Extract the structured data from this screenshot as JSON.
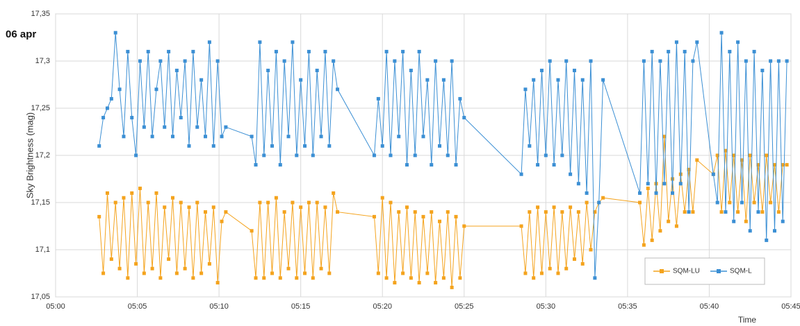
{
  "chart_data": {
    "type": "line",
    "annotation": "06 apr",
    "ylabel": "Sky Brightness (mag)",
    "xlabel": "Time",
    "x": [
      "05:02:40",
      "05:02:55",
      "05:03:10",
      "05:03:25",
      "05:03:40",
      "05:03:55",
      "05:04:10",
      "05:04:25",
      "05:04:40",
      "05:04:55",
      "05:05:10",
      "05:05:25",
      "05:05:40",
      "05:05:55",
      "05:06:10",
      "05:06:25",
      "05:06:40",
      "05:06:55",
      "05:07:10",
      "05:07:25",
      "05:07:40",
      "05:07:55",
      "05:08:10",
      "05:08:25",
      "05:08:40",
      "05:08:55",
      "05:09:10",
      "05:09:25",
      "05:09:40",
      "05:09:55",
      "05:10:10",
      "05:10:25",
      "05:12:00",
      "05:12:15",
      "05:12:30",
      "05:12:45",
      "05:13:00",
      "05:13:15",
      "05:13:30",
      "05:13:45",
      "05:14:00",
      "05:14:15",
      "05:14:30",
      "05:14:45",
      "05:15:00",
      "05:15:15",
      "05:15:30",
      "05:15:45",
      "05:16:00",
      "05:16:15",
      "05:16:30",
      "05:16:45",
      "05:17:00",
      "05:17:15",
      "05:19:30",
      "05:19:45",
      "05:20:00",
      "05:20:15",
      "05:20:30",
      "05:20:45",
      "05:21:00",
      "05:21:15",
      "05:21:30",
      "05:21:45",
      "05:22:00",
      "05:22:15",
      "05:22:30",
      "05:22:45",
      "05:23:00",
      "05:23:15",
      "05:23:30",
      "05:23:45",
      "05:24:00",
      "05:24:15",
      "05:24:30",
      "05:24:45",
      "05:25:00",
      "05:28:30",
      "05:28:45",
      "05:29:00",
      "05:29:15",
      "05:29:30",
      "05:29:45",
      "05:30:00",
      "05:30:15",
      "05:30:30",
      "05:30:45",
      "05:31:00",
      "05:31:15",
      "05:31:30",
      "05:31:45",
      "05:32:00",
      "05:32:15",
      "05:32:30",
      "05:32:45",
      "05:33:00",
      "05:33:15",
      "05:33:30",
      "05:35:45",
      "05:36:00",
      "05:36:15",
      "05:36:30",
      "05:36:45",
      "05:37:00",
      "05:37:15",
      "05:37:30",
      "05:37:45",
      "05:38:00",
      "05:38:15",
      "05:38:30",
      "05:38:45",
      "05:39:00",
      "05:39:15",
      "05:40:15",
      "05:40:30",
      "05:40:45",
      "05:41:00",
      "05:41:15",
      "05:41:30",
      "05:41:45",
      "05:42:00",
      "05:42:15",
      "05:42:30",
      "05:42:45",
      "05:43:00",
      "05:43:15",
      "05:43:30",
      "05:43:45",
      "05:44:00",
      "05:44:15",
      "05:44:30",
      "05:44:45"
    ],
    "series": [
      {
        "name": "SQM-LU",
        "color": "#f4a31d",
        "values": [
          17.135,
          17.075,
          17.16,
          17.09,
          17.15,
          17.08,
          17.155,
          17.07,
          17.16,
          17.085,
          17.165,
          17.075,
          17.15,
          17.08,
          17.16,
          17.07,
          17.145,
          17.09,
          17.155,
          17.075,
          17.15,
          17.08,
          17.145,
          17.07,
          17.15,
          17.075,
          17.14,
          17.085,
          17.145,
          17.065,
          17.13,
          17.14,
          17.12,
          17.07,
          17.15,
          17.07,
          17.15,
          17.075,
          17.155,
          17.07,
          17.14,
          17.08,
          17.15,
          17.07,
          17.145,
          17.075,
          17.15,
          17.07,
          17.15,
          17.08,
          17.145,
          17.075,
          17.16,
          17.14,
          17.135,
          17.075,
          17.155,
          17.07,
          17.15,
          17.065,
          17.14,
          17.075,
          17.145,
          17.07,
          17.14,
          17.065,
          17.135,
          17.075,
          17.14,
          17.065,
          17.13,
          17.07,
          17.14,
          17.06,
          17.135,
          17.07,
          17.125,
          17.125,
          17.075,
          17.14,
          17.07,
          17.145,
          17.075,
          17.14,
          17.08,
          17.145,
          17.075,
          17.14,
          17.08,
          17.145,
          17.09,
          17.14,
          17.085,
          17.15,
          17.1,
          17.14,
          17.15,
          17.155,
          17.15,
          17.105,
          17.165,
          17.11,
          17.17,
          17.12,
          17.22,
          17.13,
          17.175,
          17.125,
          17.18,
          17.14,
          17.185,
          17.14,
          17.195,
          17.18,
          17.2,
          17.14,
          17.205,
          17.15,
          17.2,
          17.14,
          17.195,
          17.13,
          17.2,
          17.15,
          17.19,
          17.14,
          17.2,
          17.15,
          17.19,
          17.14,
          17.19,
          17.19
        ]
      },
      {
        "name": "SQM-L",
        "color": "#3b8fd4",
        "values": [
          17.21,
          17.24,
          17.25,
          17.26,
          17.33,
          17.27,
          17.22,
          17.31,
          17.24,
          17.2,
          17.3,
          17.23,
          17.31,
          17.22,
          17.27,
          17.3,
          17.23,
          17.31,
          17.22,
          17.29,
          17.24,
          17.3,
          17.21,
          17.31,
          17.23,
          17.28,
          17.22,
          17.32,
          17.21,
          17.3,
          17.22,
          17.23,
          17.22,
          17.19,
          17.32,
          17.2,
          17.29,
          17.21,
          17.31,
          17.19,
          17.3,
          17.22,
          17.32,
          17.2,
          17.28,
          17.21,
          17.31,
          17.2,
          17.29,
          17.22,
          17.31,
          17.21,
          17.3,
          17.27,
          17.2,
          17.26,
          17.21,
          17.31,
          17.2,
          17.3,
          17.22,
          17.31,
          17.19,
          17.29,
          17.2,
          17.31,
          17.22,
          17.28,
          17.19,
          17.3,
          17.21,
          17.28,
          17.2,
          17.3,
          17.19,
          17.26,
          17.24,
          17.18,
          17.27,
          17.21,
          17.28,
          17.19,
          17.29,
          17.2,
          17.3,
          17.19,
          17.28,
          17.2,
          17.3,
          17.18,
          17.29,
          17.17,
          17.28,
          17.16,
          17.3,
          17.07,
          17.15,
          17.28,
          17.16,
          17.3,
          17.17,
          17.31,
          17.16,
          17.3,
          17.17,
          17.31,
          17.16,
          17.32,
          17.17,
          17.31,
          17.14,
          17.3,
          17.32,
          17.18,
          17.15,
          17.33,
          17.14,
          17.31,
          17.13,
          17.32,
          17.15,
          17.3,
          17.12,
          17.31,
          17.14,
          17.29,
          17.11,
          17.3,
          17.12,
          17.3,
          17.13,
          17.3
        ]
      }
    ],
    "xlim": [
      "05:00",
      "05:45"
    ],
    "xticks": [
      "05:00",
      "05:05",
      "05:10",
      "05:15",
      "05:20",
      "05:25",
      "05:30",
      "05:35",
      "05:40",
      "05:45"
    ],
    "ylim": [
      17.05,
      17.35
    ],
    "yticks": [
      {
        "value": 17.05,
        "label": "17,05"
      },
      {
        "value": 17.1,
        "label": "17,1"
      },
      {
        "value": 17.15,
        "label": "17,15"
      },
      {
        "value": 17.2,
        "label": "17,2"
      },
      {
        "value": 17.25,
        "label": "17,25"
      },
      {
        "value": 17.3,
        "label": "17,3"
      },
      {
        "value": 17.35,
        "label": "17,35"
      }
    ],
    "grid": true,
    "legend": "lower right"
  }
}
